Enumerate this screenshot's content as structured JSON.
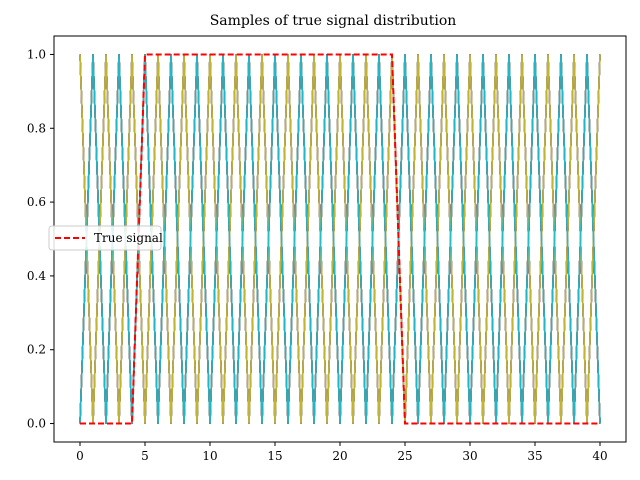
{
  "chart_data": {
    "type": "line",
    "title": "Samples of true signal distribution",
    "xlabel": "",
    "ylabel": "",
    "xlim": [
      -2,
      42
    ],
    "ylim": [
      -0.05,
      1.05
    ],
    "xticks": [
      0,
      5,
      10,
      15,
      20,
      25,
      30,
      35,
      40
    ],
    "yticks": [
      0.0,
      0.2,
      0.4,
      0.6,
      0.8,
      1.0
    ],
    "ytick_labels": [
      "0.0",
      "0.2",
      "0.4",
      "0.6",
      "0.8",
      "1.0"
    ],
    "grid": false,
    "legend": {
      "placement": "center-left",
      "entries": [
        "True signal"
      ]
    },
    "sample_colors": [
      "#1f77b4",
      "#ff7f0e",
      "#2ca02c",
      "#d62728",
      "#9467bd",
      "#8c564b",
      "#e377c2",
      "#7f7f7f",
      "#bcbd22",
      "#17becf"
    ],
    "samples": {
      "description_count": 40,
      "x": [
        0,
        1,
        2,
        3,
        4,
        5,
        6,
        7,
        8,
        9,
        10,
        11,
        12,
        13,
        14,
        15,
        16,
        17,
        18,
        19,
        20,
        21,
        22,
        23,
        24,
        25,
        26,
        27,
        28,
        29,
        30,
        31,
        32,
        33,
        34,
        35,
        36,
        37,
        38,
        39,
        40
      ],
      "pulse_starts": [
        0,
        1,
        2,
        3,
        4,
        5,
        6,
        7,
        8,
        9,
        10,
        11,
        12,
        13,
        14,
        15,
        16,
        17,
        18,
        19,
        20,
        21,
        22,
        23,
        24,
        25,
        26,
        27,
        28,
        29,
        30,
        31,
        32,
        33,
        34,
        35,
        36,
        37,
        38,
        39
      ]
    },
    "series": [
      {
        "name": "True signal",
        "color": "#ff0000",
        "style": "dashed",
        "x": [
          0,
          4,
          5,
          24,
          25,
          40
        ],
        "y": [
          0,
          0,
          1,
          1,
          0,
          0
        ]
      }
    ]
  }
}
